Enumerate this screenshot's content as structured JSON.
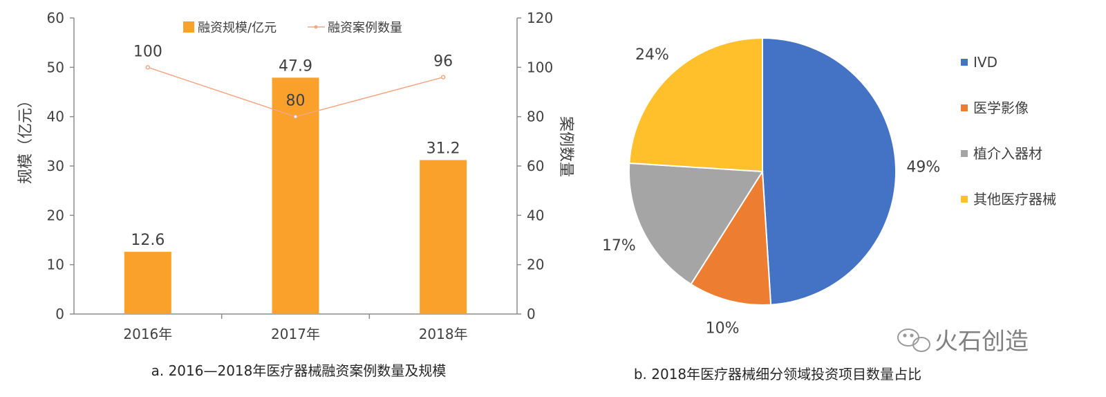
{
  "chart_data": [
    {
      "type": "bar",
      "categories": [
        "2016年",
        "2017年",
        "2018年"
      ],
      "series": [
        {
          "name": "融资规模/亿元",
          "type": "bar",
          "axis": "left",
          "values": [
            12.6,
            47.9,
            31.2
          ],
          "color": "#F9A12A"
        },
        {
          "name": "融资案例数量",
          "type": "line",
          "axis": "right",
          "values": [
            100,
            80,
            96
          ],
          "color": "#F4A582"
        }
      ],
      "left_axis": {
        "label": "规模（亿元）",
        "ylim": [
          0,
          60
        ],
        "ticks": [
          "0",
          "10",
          "20",
          "30",
          "40",
          "50",
          "60"
        ]
      },
      "right_axis": {
        "label": "案例数量",
        "ylim": [
          0,
          120
        ],
        "ticks": [
          "0",
          "20",
          "40",
          "60",
          "80",
          "100",
          "120"
        ]
      },
      "bar_labels": [
        "12.6",
        "47.9",
        "31.2"
      ],
      "line_labels": [
        "100",
        "80",
        "96"
      ],
      "legend_position": "top-center",
      "grid": false,
      "caption": "a. 2016—2018年医疗器械融资案例数量及规模"
    },
    {
      "type": "pie",
      "slices": [
        {
          "label": "IVD",
          "value": 49,
          "display": "49%",
          "color": "#4472C4"
        },
        {
          "label": "医学影像",
          "value": 10,
          "display": "10%",
          "color": "#ED7D31"
        },
        {
          "label": "植介入器材",
          "value": 17,
          "display": "17%",
          "color": "#A5A5A5"
        },
        {
          "label": "其他医疗器械",
          "value": 24,
          "display": "24%",
          "color": "#FFC02B"
        }
      ],
      "legend_position": "right",
      "caption": "b. 2018年医疗器械细分领域投资项目数量占比"
    }
  ],
  "watermark": "火石创造",
  "watermark_icon": "wechat-icon"
}
